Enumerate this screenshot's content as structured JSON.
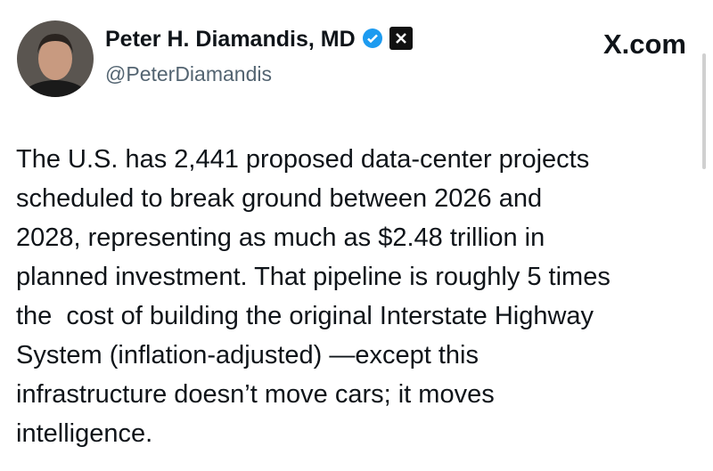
{
  "author": {
    "name": "Peter H. Diamandis, MD",
    "handle": "@PeterDiamandis"
  },
  "site": "X.com",
  "post": {
    "lines": [
      "The U.S. has 2,441 proposed data-center projects",
      "scheduled to break ground between 2026 and",
      "2028, representing as much as $2.48 trillion in",
      "planned investment. That pipeline is roughly 5 times",
      "the  cost of building the original Interstate Highway",
      "System (inflation-adjusted) —except this",
      "infrastructure doesn’t move cars; it moves",
      "intelligence."
    ]
  }
}
